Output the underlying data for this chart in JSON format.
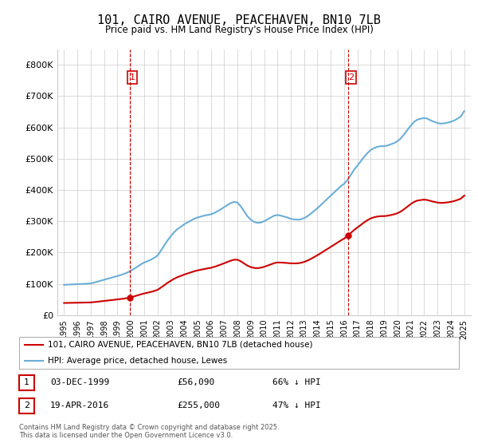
{
  "title": "101, CAIRO AVENUE, PEACEHAVEN, BN10 7LB",
  "subtitle": "Price paid vs. HM Land Registry's House Price Index (HPI)",
  "xlim": [
    1994.5,
    2025.5
  ],
  "ylim": [
    0,
    850000
  ],
  "yticks": [
    0,
    100000,
    200000,
    300000,
    400000,
    500000,
    600000,
    700000,
    800000
  ],
  "ytick_labels": [
    "£0",
    "£100K",
    "£200K",
    "£300K",
    "£400K",
    "£500K",
    "£600K",
    "£700K",
    "£800K"
  ],
  "hpi_color": "#6baed6",
  "price_color": "#cc0000",
  "vline1_x": 1999.92,
  "vline2_x": 2016.3,
  "marker1_x": 1999.92,
  "marker1_y": 56090,
  "marker2_x": 2016.3,
  "marker2_y": 255000,
  "label1_num": "1",
  "label2_num": "2",
  "legend_price": "101, CAIRO AVENUE, PEACEHAVEN, BN10 7LB (detached house)",
  "legend_hpi": "HPI: Average price, detached house, Lewes",
  "table_row1": [
    "1",
    "03-DEC-1999",
    "£56,090",
    "66% ↓ HPI"
  ],
  "table_row2": [
    "2",
    "19-APR-2016",
    "£255,000",
    "47% ↓ HPI"
  ],
  "footnote": "Contains HM Land Registry data © Crown copyright and database right 2025.\nThis data is licensed under the Open Government Licence v3.0.",
  "bg_color": "#ffffff",
  "grid_color": "#cccccc",
  "xticks": [
    1995,
    1996,
    1997,
    1998,
    1999,
    2000,
    2001,
    2002,
    2003,
    2004,
    2005,
    2006,
    2007,
    2008,
    2009,
    2010,
    2011,
    2012,
    2013,
    2014,
    2015,
    2016,
    2017,
    2018,
    2019,
    2020,
    2021,
    2022,
    2023,
    2024,
    2025
  ],
  "hpi_years_key": [
    1995,
    1995.25,
    1995.5,
    1995.75,
    1996,
    1996.25,
    1996.5,
    1996.75,
    1997,
    1997.25,
    1997.5,
    1997.75,
    1998,
    1998.25,
    1998.5,
    1998.75,
    1999,
    1999.25,
    1999.5,
    1999.75,
    2000,
    2000.25,
    2000.5,
    2000.75,
    2001,
    2001.25,
    2001.5,
    2001.75,
    2002,
    2002.25,
    2002.5,
    2002.75,
    2003,
    2003.25,
    2003.5,
    2003.75,
    2004,
    2004.25,
    2004.5,
    2004.75,
    2005,
    2005.25,
    2005.5,
    2005.75,
    2006,
    2006.25,
    2006.5,
    2006.75,
    2007,
    2007.25,
    2007.5,
    2007.75,
    2008,
    2008.25,
    2008.5,
    2008.75,
    2009,
    2009.25,
    2009.5,
    2009.75,
    2010,
    2010.25,
    2010.5,
    2010.75,
    2011,
    2011.25,
    2011.5,
    2011.75,
    2012,
    2012.25,
    2012.5,
    2012.75,
    2013,
    2013.25,
    2013.5,
    2013.75,
    2014,
    2014.25,
    2014.5,
    2014.75,
    2015,
    2015.25,
    2015.5,
    2015.75,
    2016,
    2016.25,
    2016.5,
    2016.75,
    2017,
    2017.25,
    2017.5,
    2017.75,
    2018,
    2018.25,
    2018.5,
    2018.75,
    2019,
    2019.25,
    2019.5,
    2019.75,
    2020,
    2020.25,
    2020.5,
    2020.75,
    2021,
    2021.25,
    2021.5,
    2021.75,
    2022,
    2022.25,
    2022.5,
    2022.75,
    2023,
    2023.25,
    2023.5,
    2023.75,
    2024,
    2024.25,
    2024.5,
    2024.75,
    2025
  ],
  "hpi_values_key": [
    97000,
    97500,
    98000,
    98500,
    99000,
    99500,
    100000,
    100500,
    101500,
    104000,
    107000,
    110000,
    113000,
    116000,
    119000,
    122000,
    125000,
    128000,
    132000,
    136000,
    142000,
    148000,
    155000,
    162000,
    168000,
    172000,
    177000,
    183000,
    190000,
    205000,
    222000,
    238000,
    252000,
    265000,
    275000,
    282000,
    290000,
    296000,
    302000,
    308000,
    312000,
    315000,
    318000,
    320000,
    322000,
    326000,
    332000,
    338000,
    345000,
    352000,
    358000,
    362000,
    360000,
    348000,
    332000,
    316000,
    305000,
    298000,
    295000,
    296000,
    300000,
    306000,
    312000,
    318000,
    320000,
    318000,
    315000,
    312000,
    308000,
    306000,
    305000,
    306000,
    310000,
    316000,
    324000,
    333000,
    342000,
    352000,
    362000,
    372000,
    382000,
    392000,
    402000,
    412000,
    420000,
    432000,
    448000,
    465000,
    478000,
    492000,
    506000,
    518000,
    528000,
    534000,
    538000,
    540000,
    540000,
    542000,
    546000,
    550000,
    556000,
    565000,
    578000,
    592000,
    606000,
    618000,
    625000,
    628000,
    630000,
    628000,
    622000,
    618000,
    614000,
    612000,
    613000,
    615000,
    618000,
    622000,
    628000,
    635000,
    652000
  ]
}
